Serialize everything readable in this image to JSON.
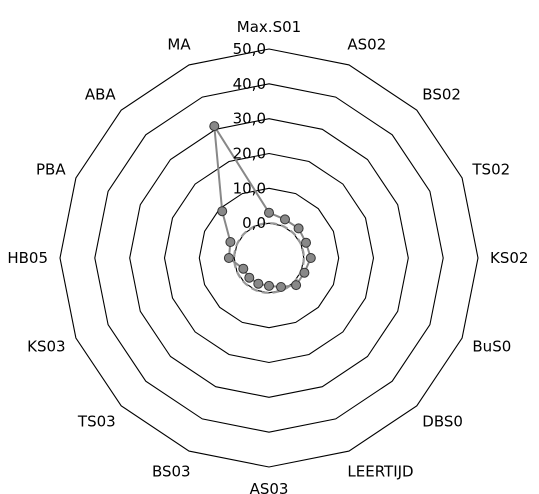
{
  "chart_data": {
    "type": "radar",
    "title": "",
    "categories": [
      "Max.S01",
      "AS02",
      "BS02",
      "TS02",
      "KS02",
      "BuS0",
      "DBS0",
      "LEERTIJD",
      "AS03",
      "BS03",
      "TS03",
      "KS03",
      "HB05",
      "PBA",
      "ABA",
      "MA"
    ],
    "axis_ticks": [
      "0,0",
      "10,0",
      "20,0",
      "30,0",
      "40,0",
      "50,0"
    ],
    "rlim": [
      -10,
      50
    ],
    "grid": true,
    "series": [
      {
        "values": [
          3,
          2,
          2,
          1.5,
          2,
          1,
          1,
          -1,
          -2,
          -2,
          -2,
          -2,
          1.5,
          2,
          9,
          31
        ],
        "color": "#888888",
        "marker": "circle"
      }
    ],
    "reference": {
      "value": 0,
      "style": "dashed",
      "color": "#999999"
    }
  }
}
